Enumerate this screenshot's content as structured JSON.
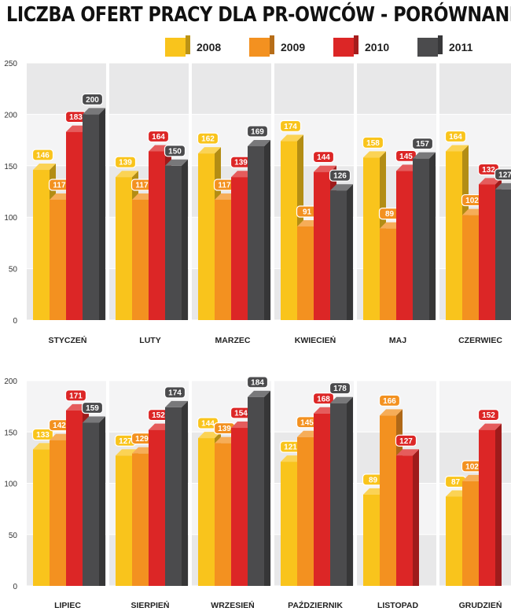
{
  "title": "LICZBA OFERT PRACY DLA PR-OWCÓW - PORÓWNANIE",
  "legend": [
    {
      "label": "2008",
      "color": "#f9c41c"
    },
    {
      "label": "2009",
      "color": "#f39120"
    },
    {
      "label": "2010",
      "color": "#dc2626"
    },
    {
      "label": "2011",
      "color": "#4b4b4d"
    }
  ],
  "chart_data": [
    {
      "type": "bar",
      "categories": [
        "STYCZEŃ",
        "LUTY",
        "MARZEC",
        "KWIECIEŃ",
        "MAJ",
        "CZERWIEC"
      ],
      "series": [
        {
          "name": "2008",
          "values": [
            146,
            139,
            162,
            174,
            158,
            164
          ]
        },
        {
          "name": "2009",
          "values": [
            117,
            117,
            117,
            91,
            89,
            102
          ]
        },
        {
          "name": "2010",
          "values": [
            183,
            164,
            139,
            144,
            145,
            132
          ]
        },
        {
          "name": "2011",
          "values": [
            200,
            150,
            169,
            126,
            157,
            127
          ]
        }
      ],
      "yticks": [
        0,
        50,
        100,
        150,
        200,
        250
      ],
      "ylim": [
        0,
        250
      ]
    },
    {
      "type": "bar",
      "categories": [
        "LIPIEC",
        "SIERPIEŃ",
        "WRZESIEŃ",
        "PAŹDZIERNIK",
        "LISTOPAD",
        "GRUDZIEŃ"
      ],
      "series": [
        {
          "name": "2008",
          "values": [
            133,
            127,
            144,
            121,
            89,
            87
          ]
        },
        {
          "name": "2009",
          "values": [
            142,
            129,
            139,
            145,
            166,
            102
          ]
        },
        {
          "name": "2010",
          "values": [
            171,
            152,
            154,
            168,
            127,
            152
          ]
        },
        {
          "name": "2011",
          "values": [
            159,
            174,
            184,
            178,
            null,
            null
          ]
        }
      ],
      "yticks": [
        0,
        50,
        100,
        150,
        200
      ],
      "ylim": [
        0,
        200
      ]
    }
  ]
}
